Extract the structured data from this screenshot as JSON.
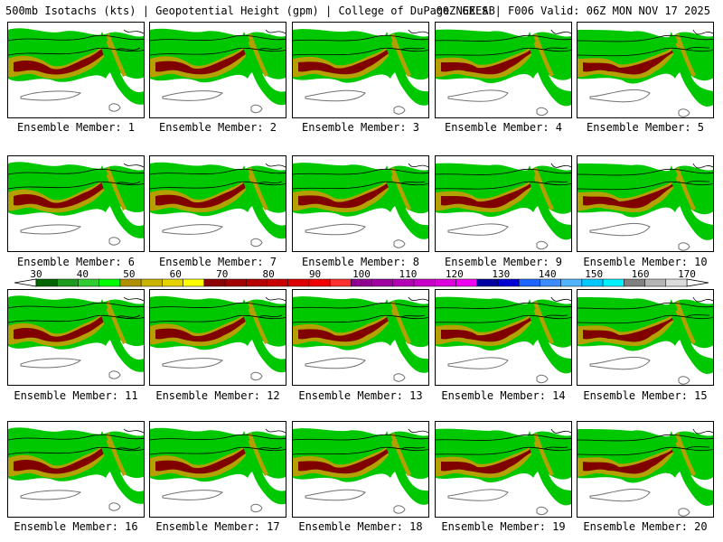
{
  "header": {
    "title": "500mb Isotachs (kts) | Geopotential Height (gpm) | College of DuPage NEXLAB",
    "run": "00Z GEFS | F006 Valid: 06Z MON NOV 17 2025"
  },
  "panel_prefix": "Ensemble Member:",
  "members": [
    "1",
    "2",
    "3",
    "4",
    "5",
    "6",
    "7",
    "8",
    "9",
    "10",
    "11",
    "12",
    "13",
    "14",
    "15",
    "16",
    "17",
    "18",
    "19",
    "20"
  ],
  "colorbar": {
    "units": "kts",
    "ticks": [
      "30",
      "40",
      "50",
      "60",
      "70",
      "80",
      "90",
      "100",
      "110",
      "120",
      "130",
      "140",
      "150",
      "160",
      "170"
    ],
    "colors": [
      "#006400",
      "#1e9a1e",
      "#32cd32",
      "#00ff00",
      "#b09000",
      "#c8b400",
      "#e6d200",
      "#ffff00",
      "#8b0000",
      "#a00000",
      "#b40000",
      "#c80000",
      "#dc0000",
      "#f00000",
      "#ff3030",
      "#900090",
      "#a000a0",
      "#b400b4",
      "#c800c8",
      "#dc00dc",
      "#f000f0",
      "#0000a0",
      "#0000d0",
      "#1e64ff",
      "#3c8cff",
      "#50b4ff",
      "#00c8ff",
      "#00f0ff",
      "#808080",
      "#b4b4b4",
      "#dcdcdc"
    ]
  },
  "map_colors": {
    "light_green": "#00c800",
    "dark_green": "#006400",
    "yellow": "#b4a000",
    "maroon": "#800000",
    "contour": "#000000",
    "coast": "#707070"
  }
}
